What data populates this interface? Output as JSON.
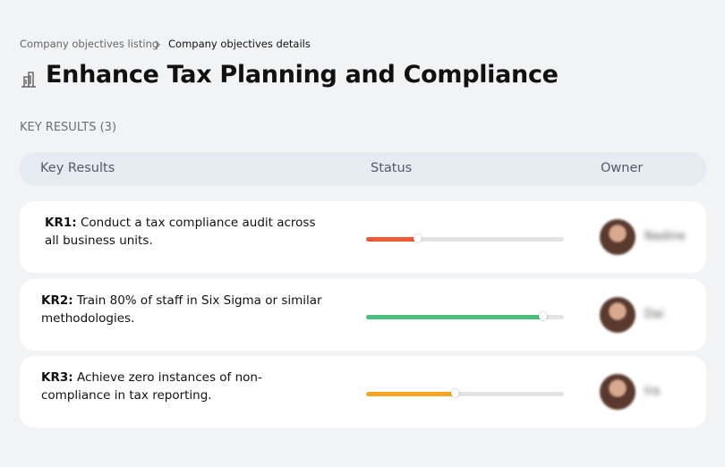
{
  "breadcrumb": {
    "items": [
      "Company objectives listing",
      "Company objectives details"
    ]
  },
  "header": {
    "title": "Enhance Tax Planning and Compliance"
  },
  "section_label": "KEY RESULTS (3)",
  "table": {
    "columns": [
      "Key Results",
      "Status",
      "Owner"
    ],
    "rows": [
      {
        "id": "KR1:",
        "text": "Conduct a tax compliance audit across all business units.",
        "progress": 26,
        "color": "#ef5a35",
        "owner": "Nadine"
      },
      {
        "id": "KR2:",
        "text": "Train 80% of staff in Six Sigma or similar methodologies.",
        "progress": 89,
        "color": "#4cbf7e",
        "owner": "Dai"
      },
      {
        "id": "KR3:",
        "text": "Achieve zero instances of non-compliance in tax reporting.",
        "progress": 45,
        "color": "#f6a623",
        "owner": "Ira"
      }
    ]
  }
}
